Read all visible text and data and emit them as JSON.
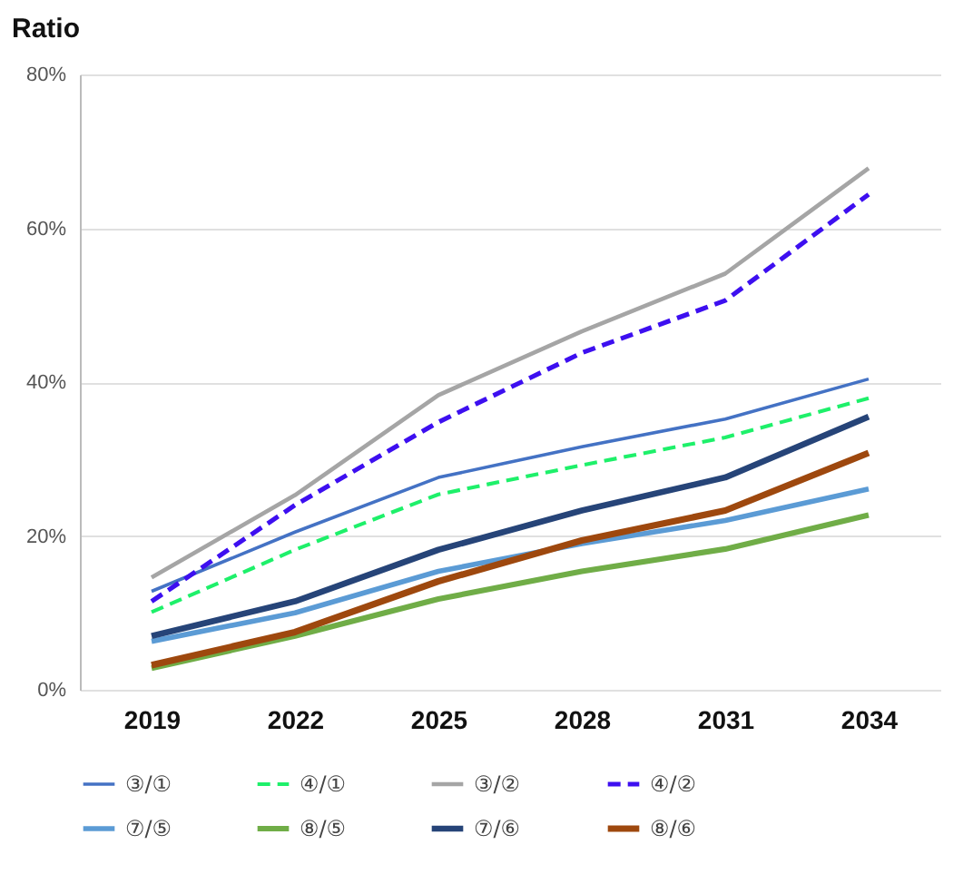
{
  "chart_data": {
    "type": "line",
    "ylabel": "Ratio",
    "categories": [
      "2019",
      "2022",
      "2025",
      "2028",
      "2031",
      "2034"
    ],
    "ylim": [
      0,
      80
    ],
    "yticks": [
      {
        "value": 0,
        "label": "0%"
      },
      {
        "value": 20,
        "label": "20%"
      },
      {
        "value": 40,
        "label": "40%"
      },
      {
        "value": 60,
        "label": "60%"
      },
      {
        "value": 80,
        "label": "80%"
      }
    ],
    "grid": "y",
    "legend": "bottom",
    "marker": "none",
    "series": [
      {
        "name": "③/①",
        "color": "#4472c4",
        "line_style": "solid",
        "values": [
          12.8,
          20.5,
          27.6,
          31.6,
          35.2,
          40.4
        ]
      },
      {
        "name": "④/①",
        "color": "#1ef06a",
        "line_style": "dashed",
        "values": [
          10.1,
          18.2,
          25.4,
          29.2,
          32.8,
          37.9
        ]
      },
      {
        "name": "③/②",
        "color": "#a5a5a5",
        "line_style": "solid",
        "values": [
          14.6,
          25.3,
          38.3,
          46.6,
          54.1,
          67.8
        ]
      },
      {
        "name": "④/②",
        "color": "#3d0ff0",
        "line_style": "dashed",
        "values": [
          11.5,
          24.0,
          34.8,
          43.8,
          50.6,
          64.4
        ]
      },
      {
        "name": "⑦/⑤",
        "color": "#5b9bd5",
        "line_style": "solid",
        "values": [
          6.3,
          10.0,
          15.4,
          19.0,
          22.0,
          26.1
        ]
      },
      {
        "name": "⑧/⑤",
        "color": "#70ad47",
        "line_style": "solid",
        "values": [
          2.8,
          7.0,
          11.8,
          15.4,
          18.3,
          22.7
        ]
      },
      {
        "name": "⑦/⑥",
        "color": "#264478",
        "line_style": "solid",
        "values": [
          7.0,
          11.5,
          18.2,
          23.3,
          27.6,
          35.5
        ]
      },
      {
        "name": "⑧/⑥",
        "color": "#9e480e",
        "line_style": "solid",
        "values": [
          3.2,
          7.5,
          14.1,
          19.4,
          23.3,
          30.8
        ]
      }
    ]
  }
}
